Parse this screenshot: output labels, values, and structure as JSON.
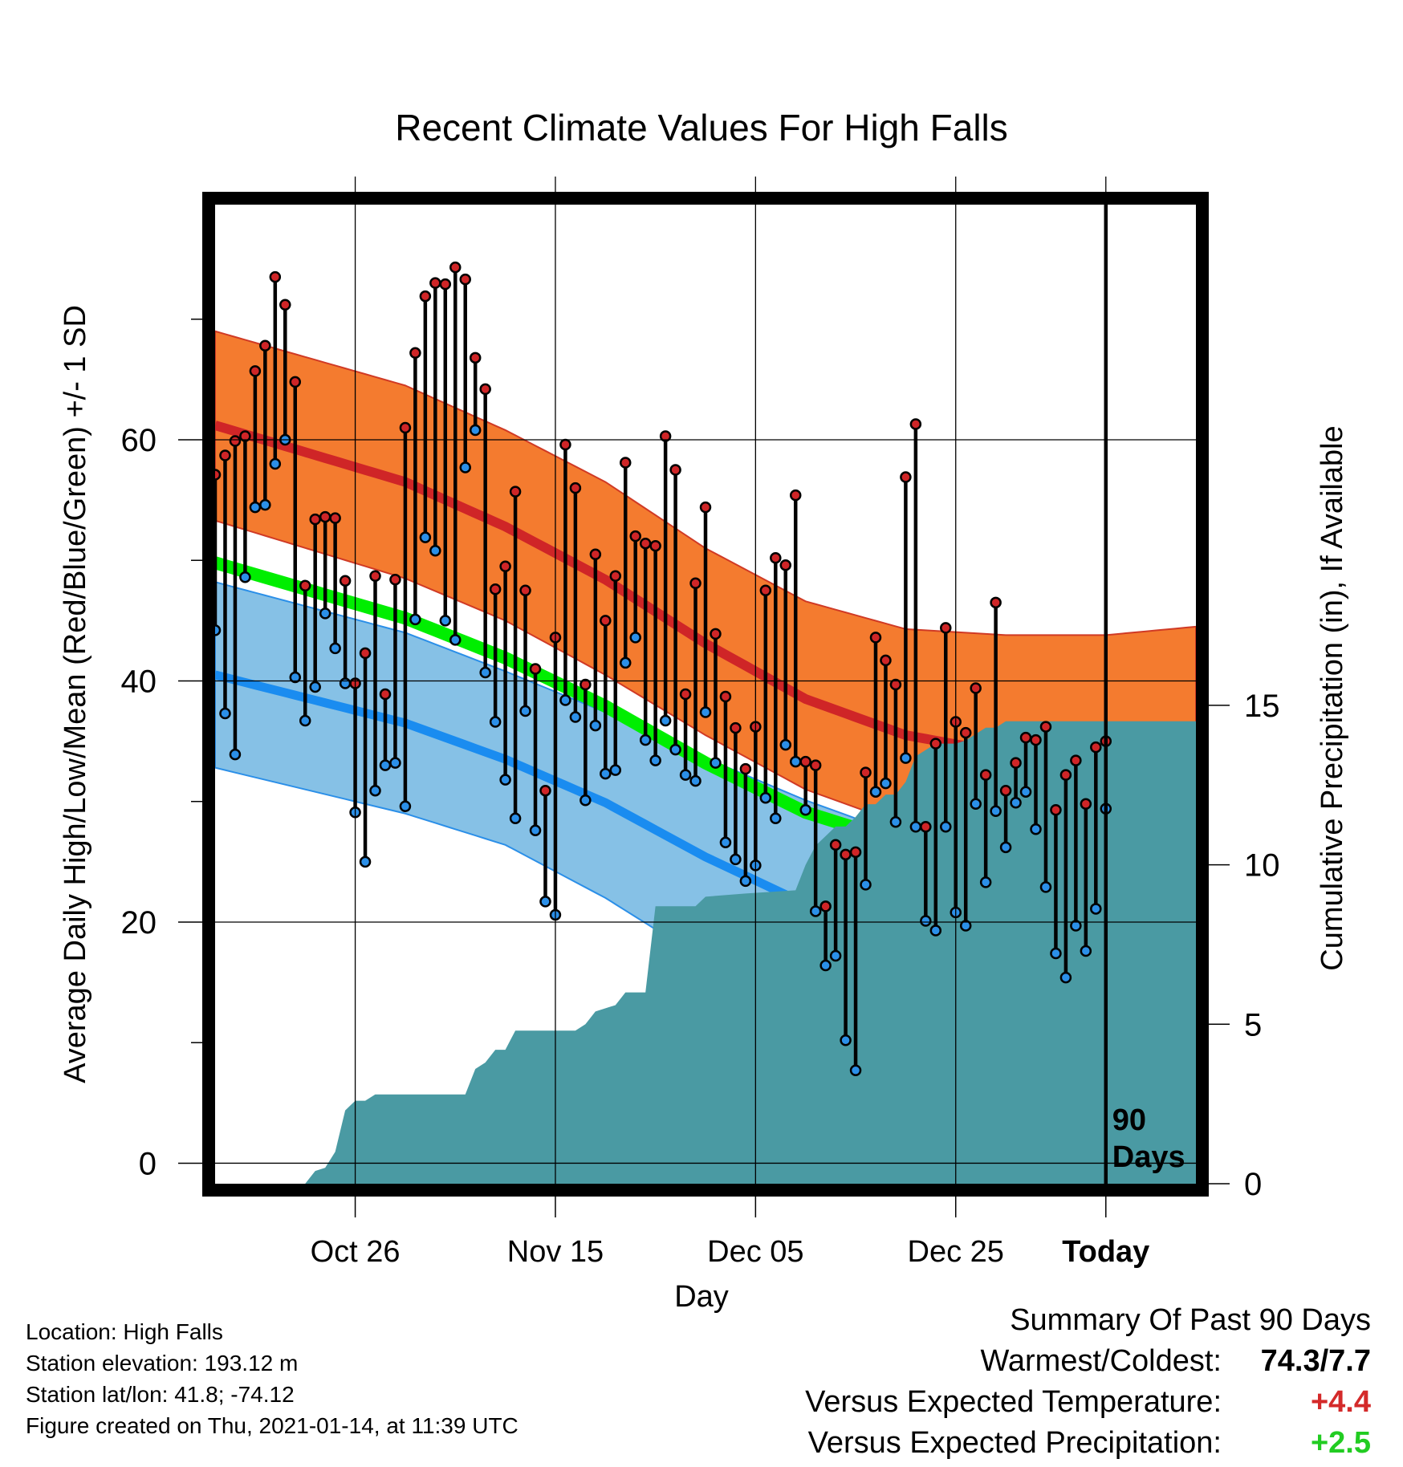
{
  "chart_data": {
    "type": "line",
    "title": "Recent Climate Values For High Falls",
    "xlabel": "Day",
    "ylabel": "Average Daily High/Low/Mean (Red/Blue/Green) +/- 1 SD",
    "y2label": "Cumulative Precipitation (in), If Available",
    "x_ticks": [
      "Oct 26",
      "Nov 15",
      "Dec 05",
      "Dec 25",
      "Today"
    ],
    "y_ticks": [
      0,
      20,
      40,
      60
    ],
    "y2_ticks": [
      0,
      5,
      10,
      15
    ],
    "ylim": [
      -1.7,
      79.5
    ],
    "y2lim": [
      0,
      30.7
    ],
    "xlim": [
      -89,
      9
    ],
    "today_label": "90\nDays",
    "grid": true,
    "series": [
      {
        "values": [
          [
            -89,
            57.1,
            44.2
          ],
          [
            -88,
            58.7,
            37.3
          ],
          [
            -87,
            59.9,
            33.9
          ],
          [
            -86,
            60.3,
            48.6
          ],
          [
            -85,
            65.7,
            54.4
          ],
          [
            -84,
            67.8,
            54.6
          ],
          [
            -83,
            73.5,
            58.0
          ],
          [
            -82,
            71.2,
            60.0
          ],
          [
            -81,
            64.8,
            40.3
          ],
          [
            -80,
            47.9,
            36.7
          ],
          [
            -79,
            53.4,
            39.5
          ],
          [
            -78,
            53.6,
            45.6
          ],
          [
            -77,
            53.5,
            42.7
          ],
          [
            -76,
            48.3,
            39.8
          ],
          [
            -75,
            39.8,
            29.1
          ],
          [
            -74,
            42.3,
            25.0
          ],
          [
            -73,
            48.7,
            30.9
          ],
          [
            -72,
            38.9,
            33.0
          ],
          [
            -71,
            48.4,
            33.2
          ],
          [
            -70,
            61.0,
            29.6
          ],
          [
            -69,
            67.2,
            45.1
          ],
          [
            -68,
            71.9,
            51.9
          ],
          [
            -67,
            73.0,
            50.8
          ],
          [
            -66,
            72.9,
            45.0
          ],
          [
            -65,
            74.3,
            43.4
          ],
          [
            -64,
            73.3,
            57.7
          ],
          [
            -63,
            66.8,
            60.8
          ],
          [
            -62,
            64.2,
            40.7
          ],
          [
            -61,
            47.6,
            36.6
          ],
          [
            -60,
            49.5,
            31.8
          ],
          [
            -59,
            55.7,
            28.6
          ],
          [
            -58,
            47.5,
            37.5
          ],
          [
            -57,
            41.0,
            27.6
          ],
          [
            -56,
            30.9,
            21.7
          ],
          [
            -55,
            43.6,
            20.6
          ],
          [
            -54,
            59.6,
            38.4
          ],
          [
            -53,
            56.0,
            37.0
          ],
          [
            -52,
            39.7,
            30.1
          ],
          [
            -51,
            50.5,
            36.3
          ],
          [
            -50,
            45.0,
            32.3
          ],
          [
            -49,
            48.7,
            32.6
          ],
          [
            -48,
            58.1,
            41.5
          ],
          [
            -47,
            52.0,
            43.6
          ],
          [
            -46,
            51.4,
            35.1
          ],
          [
            -45,
            51.2,
            33.4
          ],
          [
            -44,
            60.3,
            36.7
          ],
          [
            -43,
            57.5,
            34.3
          ],
          [
            -42,
            38.9,
            32.2
          ],
          [
            -41,
            48.1,
            31.7
          ],
          [
            -40,
            54.4,
            37.4
          ],
          [
            -39,
            43.9,
            33.2
          ],
          [
            -38,
            38.7,
            26.6
          ],
          [
            -37,
            36.1,
            25.2
          ],
          [
            -36,
            32.7,
            23.4
          ],
          [
            -35,
            36.2,
            24.7
          ],
          [
            -34,
            47.5,
            30.3
          ],
          [
            -33,
            50.2,
            28.6
          ],
          [
            -32,
            49.6,
            34.7
          ],
          [
            -31,
            55.4,
            33.3
          ],
          [
            -30,
            33.3,
            29.3
          ],
          [
            -29,
            33.0,
            20.9
          ],
          [
            -28,
            21.3,
            16.4
          ],
          [
            -27,
            26.4,
            17.2
          ],
          [
            -26,
            25.6,
            10.2
          ],
          [
            -25,
            25.8,
            7.7
          ],
          [
            -24,
            32.4,
            23.1
          ],
          [
            -23,
            43.6,
            30.8
          ],
          [
            -22,
            41.7,
            31.5
          ],
          [
            -21,
            39.7,
            28.3
          ],
          [
            -20,
            56.9,
            33.6
          ],
          [
            -19,
            61.3,
            27.9
          ],
          [
            -18,
            27.9,
            20.1
          ],
          [
            -17,
            34.8,
            19.3
          ],
          [
            -16,
            44.4,
            27.9
          ],
          [
            -15,
            36.6,
            20.8
          ],
          [
            -14,
            35.7,
            19.7
          ],
          [
            -13,
            39.4,
            29.8
          ],
          [
            -12,
            32.2,
            23.3
          ],
          [
            -11,
            46.5,
            29.2
          ],
          [
            -10,
            30.9,
            26.2
          ],
          [
            -9,
            33.2,
            29.9
          ],
          [
            -8,
            35.3,
            30.8
          ],
          [
            -7,
            35.1,
            27.7
          ],
          [
            -6,
            36.2,
            22.9
          ],
          [
            -5,
            29.3,
            17.4
          ],
          [
            -4,
            32.2,
            15.4
          ],
          [
            -3,
            33.4,
            19.7
          ],
          [
            -2,
            29.8,
            17.6
          ],
          [
            -1,
            34.5,
            21.1
          ],
          [
            0,
            35.0,
            29.4
          ]
        ],
        "columns": [
          "day",
          "high",
          "low"
        ]
      },
      {
        "values": [
          [
            -89,
            61.2,
            53.3,
            69.0
          ],
          [
            -70,
            56.5,
            48.5,
            64.5
          ],
          [
            -60,
            52.8,
            45.0,
            60.8
          ],
          [
            -50,
            48.4,
            40.5,
            56.5
          ],
          [
            -40,
            43.1,
            35.5,
            51.0
          ],
          [
            -30,
            38.5,
            31.0,
            46.6
          ],
          [
            -20,
            35.5,
            28.0,
            44.3
          ],
          [
            -10,
            34.0,
            27.0,
            43.8
          ],
          [
            0,
            33.5,
            27.0,
            43.8
          ],
          [
            9,
            34.2,
            27.8,
            44.5
          ]
        ],
        "columns": [
          "day",
          "normal_high",
          "high_minus_1sd",
          "high_plus_1sd"
        ]
      },
      {
        "values": [
          [
            -89,
            40.5,
            32.8,
            48.2
          ],
          [
            -70,
            36.5,
            29.0,
            44.0
          ],
          [
            -60,
            33.5,
            26.4,
            40.8
          ],
          [
            -50,
            29.9,
            22.0,
            37.4
          ],
          [
            -40,
            25.4,
            16.8,
            33.6
          ],
          [
            -30,
            21.5,
            12.3,
            30.1
          ],
          [
            -20,
            18.3,
            9.5,
            27.1
          ],
          [
            -10,
            16.3,
            7.8,
            24.8
          ],
          [
            0,
            15.4,
            7.4,
            23.1
          ],
          [
            9,
            15.6,
            7.6,
            23.4
          ]
        ],
        "columns": [
          "day",
          "normal_low",
          "low_minus_1sd",
          "low_plus_1sd"
        ]
      },
      {
        "values": [
          [
            -89,
            49.8
          ],
          [
            -70,
            45.2
          ],
          [
            -60,
            41.9
          ],
          [
            -50,
            37.9
          ],
          [
            -40,
            33.2
          ],
          [
            -30,
            29.1
          ],
          [
            -20,
            26.5
          ],
          [
            -10,
            24.5
          ],
          [
            0,
            24.0
          ],
          [
            9,
            24.5
          ]
        ],
        "columns": [
          "day",
          "normal_mean"
        ]
      },
      {
        "values": [
          [
            -89,
            0
          ],
          [
            -80,
            0
          ],
          [
            -79,
            0.4
          ],
          [
            -78,
            0.5
          ],
          [
            -77,
            1.0
          ],
          [
            -76,
            2.3
          ],
          [
            -75,
            2.6
          ],
          [
            -74,
            2.6
          ],
          [
            -73,
            2.8
          ],
          [
            -64,
            2.8
          ],
          [
            -63,
            3.6
          ],
          [
            -62,
            3.8
          ],
          [
            -61,
            4.2
          ],
          [
            -60,
            4.2
          ],
          [
            -59,
            4.8
          ],
          [
            -53,
            4.8
          ],
          [
            -52,
            5.0
          ],
          [
            -51,
            5.4
          ],
          [
            -49,
            5.6
          ],
          [
            -48,
            6.0
          ],
          [
            -46,
            6.0
          ],
          [
            -45,
            8.7
          ],
          [
            -41,
            8.7
          ],
          [
            -40,
            9.0
          ],
          [
            -36,
            9.1
          ],
          [
            -31,
            9.2
          ],
          [
            -30,
            10.0
          ],
          [
            -29,
            10.6
          ],
          [
            -28,
            10.9
          ],
          [
            -27,
            11.2
          ],
          [
            -26,
            11.2
          ],
          [
            -25,
            11.5
          ],
          [
            -24,
            11.9
          ],
          [
            -23,
            11.9
          ],
          [
            -22,
            12.2
          ],
          [
            -21,
            12.2
          ],
          [
            -20,
            12.6
          ],
          [
            -19,
            13.4
          ],
          [
            -18,
            13.6
          ],
          [
            -17,
            13.8
          ],
          [
            -16,
            13.8
          ],
          [
            -15,
            13.8
          ],
          [
            -14,
            13.9
          ],
          [
            -13,
            14.1
          ],
          [
            -12,
            14.3
          ],
          [
            -11,
            14.3
          ],
          [
            -10,
            14.5
          ],
          [
            -9,
            14.5
          ],
          [
            -7,
            14.5
          ],
          [
            0,
            14.5
          ],
          [
            9,
            14.5
          ]
        ],
        "columns": [
          "day",
          "cumulative_precip_in"
        ]
      }
    ]
  },
  "colors": {
    "high_band": "#f47b2f",
    "high_normal": "#cf2527",
    "low_band": "#86c1e6",
    "low_normal": "#1a8cf0",
    "low_band_edge": "#2b8fe8",
    "mean_normal": "#00ee00",
    "overlap": "#9a1116",
    "precip": "#4a9aa3",
    "high_marker": "#cf2527",
    "low_marker": "#2b8fe8",
    "frame": "#000000"
  },
  "footer": {
    "location": "Location: High Falls",
    "elevation": "Station elevation: 193.12 m",
    "latlon": "Station lat/lon: 41.8; -74.12",
    "created": "Figure created on Thu, 2021-01-14, at 11:39 UTC"
  },
  "summary": {
    "heading": "Summary Of Past 90 Days",
    "warmest_label": "Warmest/Coldest:",
    "warmest_value": "74.3/7.7",
    "temp_label": "Versus Expected Temperature:",
    "temp_value": "+4.4",
    "temp_color": "#d42a2a",
    "precip_label": "Versus Expected Precipitation:",
    "precip_value": "+2.5",
    "precip_color": "#22cc22"
  }
}
